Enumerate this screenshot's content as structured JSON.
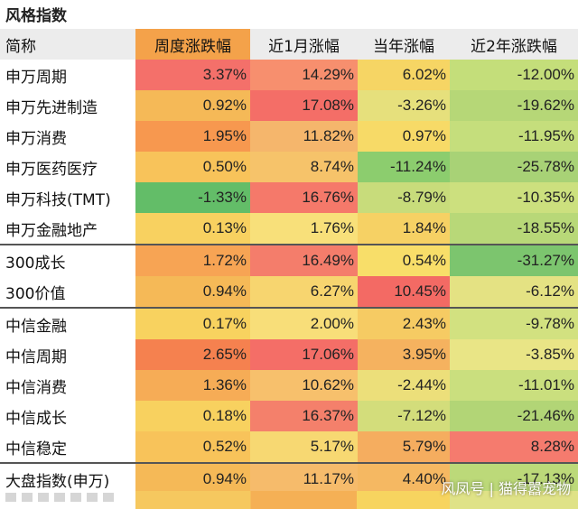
{
  "title": "风格指数",
  "headers": [
    "简称",
    "周度涨跌幅",
    "近1月涨幅",
    "当年涨幅",
    "近2年涨跌幅"
  ],
  "rows": [
    {
      "name": "申万周期",
      "vals": [
        "3.37%",
        "14.29%",
        "6.02%",
        "-12.00%"
      ],
      "colors": [
        "#f4706a",
        "#f78f6e",
        "#f6d564",
        "#c4de7a"
      ]
    },
    {
      "name": "申万先进制造",
      "vals": [
        "0.92%",
        "17.08%",
        "-3.26%",
        "-19.62%"
      ],
      "colors": [
        "#f5b957",
        "#f46e67",
        "#e6e07c",
        "#b6d777"
      ]
    },
    {
      "name": "申万消费",
      "vals": [
        "1.95%",
        "11.82%",
        "0.97%",
        "-11.95%"
      ],
      "colors": [
        "#f7984f",
        "#f5b66c",
        "#f7da67",
        "#c5de7c"
      ]
    },
    {
      "name": "申万医药医疗",
      "vals": [
        "0.50%",
        "8.74%",
        "-11.24%",
        "-25.78%"
      ],
      "colors": [
        "#f8c35a",
        "#f6c36a",
        "#8ccd6e",
        "#a8d276"
      ]
    },
    {
      "name": "申万科技(TMT)",
      "vals": [
        "-1.33%",
        "16.76%",
        "-8.79%",
        "-10.35%"
      ],
      "colors": [
        "#63bd68",
        "#f5796a",
        "#c8dc7b",
        "#cce07e"
      ]
    },
    {
      "name": "申万金融地产",
      "vals": [
        "0.13%",
        "1.76%",
        "1.84%",
        "-18.55%"
      ],
      "colors": [
        "#f8d160",
        "#f8e07a",
        "#f6d164",
        "#b8d878"
      ]
    },
    {
      "name": "300成长",
      "vals": [
        "1.72%",
        "16.49%",
        "0.54%",
        "-31.27%"
      ],
      "colors": [
        "#f7a454",
        "#f47d6b",
        "#f8de69",
        "#7cc56e"
      ],
      "sep": true
    },
    {
      "name": "300价值",
      "vals": [
        "0.94%",
        "6.27%",
        "10.45%",
        "-6.12%"
      ],
      "colors": [
        "#f5b957",
        "#f7d56f",
        "#f36a64",
        "#e4e283"
      ]
    },
    {
      "name": "中信金融",
      "vals": [
        "0.17%",
        "2.00%",
        "2.43%",
        "-9.78%"
      ],
      "colors": [
        "#f8d25f",
        "#f8de79",
        "#f6cb63",
        "#d2e180"
      ],
      "sep": true
    },
    {
      "name": "中信周期",
      "vals": [
        "2.65%",
        "17.06%",
        "3.95%",
        "-3.85%"
      ],
      "colors": [
        "#f5814f",
        "#f46e67",
        "#f5b25f",
        "#e9e586"
      ]
    },
    {
      "name": "中信消费",
      "vals": [
        "1.36%",
        "10.62%",
        "-2.44%",
        "-11.01%"
      ],
      "colors": [
        "#f6ac56",
        "#f7c06c",
        "#ecdf7a",
        "#cadf7e"
      ]
    },
    {
      "name": "中信成长",
      "vals": [
        "0.18%",
        "16.37%",
        "-7.12%",
        "-21.46%"
      ],
      "colors": [
        "#f8d15f",
        "#f4806b",
        "#d3dd7b",
        "#b2d576"
      ]
    },
    {
      "name": "中信稳定",
      "vals": [
        "0.52%",
        "5.17%",
        "5.79%",
        "8.28%"
      ],
      "colors": [
        "#f8c35a",
        "#f7d872",
        "#f5ad5f",
        "#f57b6e"
      ]
    },
    {
      "name": "大盘指数(申万)",
      "vals": [
        "0.94%",
        "11.17%",
        "4.40%",
        "-17.13%"
      ],
      "colors": [
        "#f5b957",
        "#f6bb6b",
        "#f5b862",
        "#bcd979"
      ],
      "sep": true
    }
  ],
  "watermark": "风凤号 | 猫得嚣宠物"
}
